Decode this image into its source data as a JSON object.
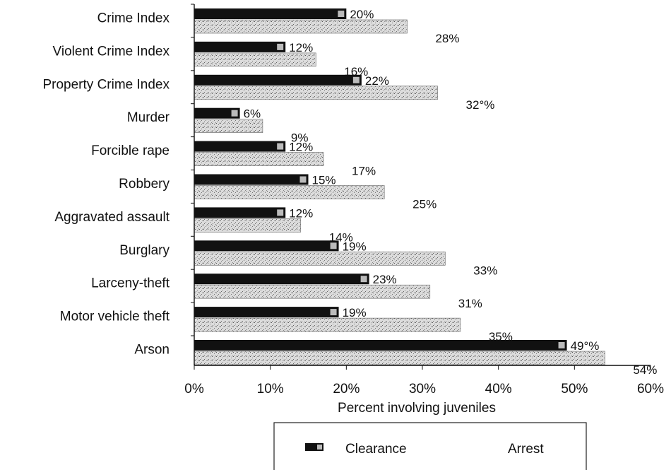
{
  "chart_data": {
    "type": "bar",
    "orientation": "horizontal",
    "title": "",
    "xlabel": "Percent involving juveniles",
    "ylabel": "",
    "xlim": [
      0,
      60
    ],
    "x_ticks": [
      "0%",
      "10%",
      "20%",
      "30%",
      "40%",
      "50%",
      "60%"
    ],
    "grid": false,
    "legend_position": "bottom",
    "categories": [
      "Crime Index",
      "Violent Crime Index",
      "Property Crime Index",
      "Murder",
      "Forcible rape",
      "Robbery",
      "Aggravated assault",
      "Burglary",
      "Larceny-theft",
      "Motor vehicle theft",
      "Arson"
    ],
    "series": [
      {
        "name": "Clearance",
        "color": "#111111",
        "values": [
          20,
          12,
          22,
          6,
          12,
          15,
          12,
          19,
          23,
          19,
          49
        ],
        "labels": [
          "20%",
          "12%",
          "22%",
          "6%",
          "12%",
          "15%",
          "12%",
          "19%",
          "23%",
          "19%",
          "49°%"
        ]
      },
      {
        "name": "Arrest",
        "color": "#d0d0d0",
        "values": [
          28,
          16,
          32,
          9,
          17,
          25,
          14,
          33,
          31,
          35,
          54
        ],
        "labels": [
          "28%",
          "16%",
          "32°%",
          "9%",
          "17%",
          "25%",
          "14%",
          "33%",
          "31%",
          "35%",
          "54%"
        ]
      }
    ]
  }
}
